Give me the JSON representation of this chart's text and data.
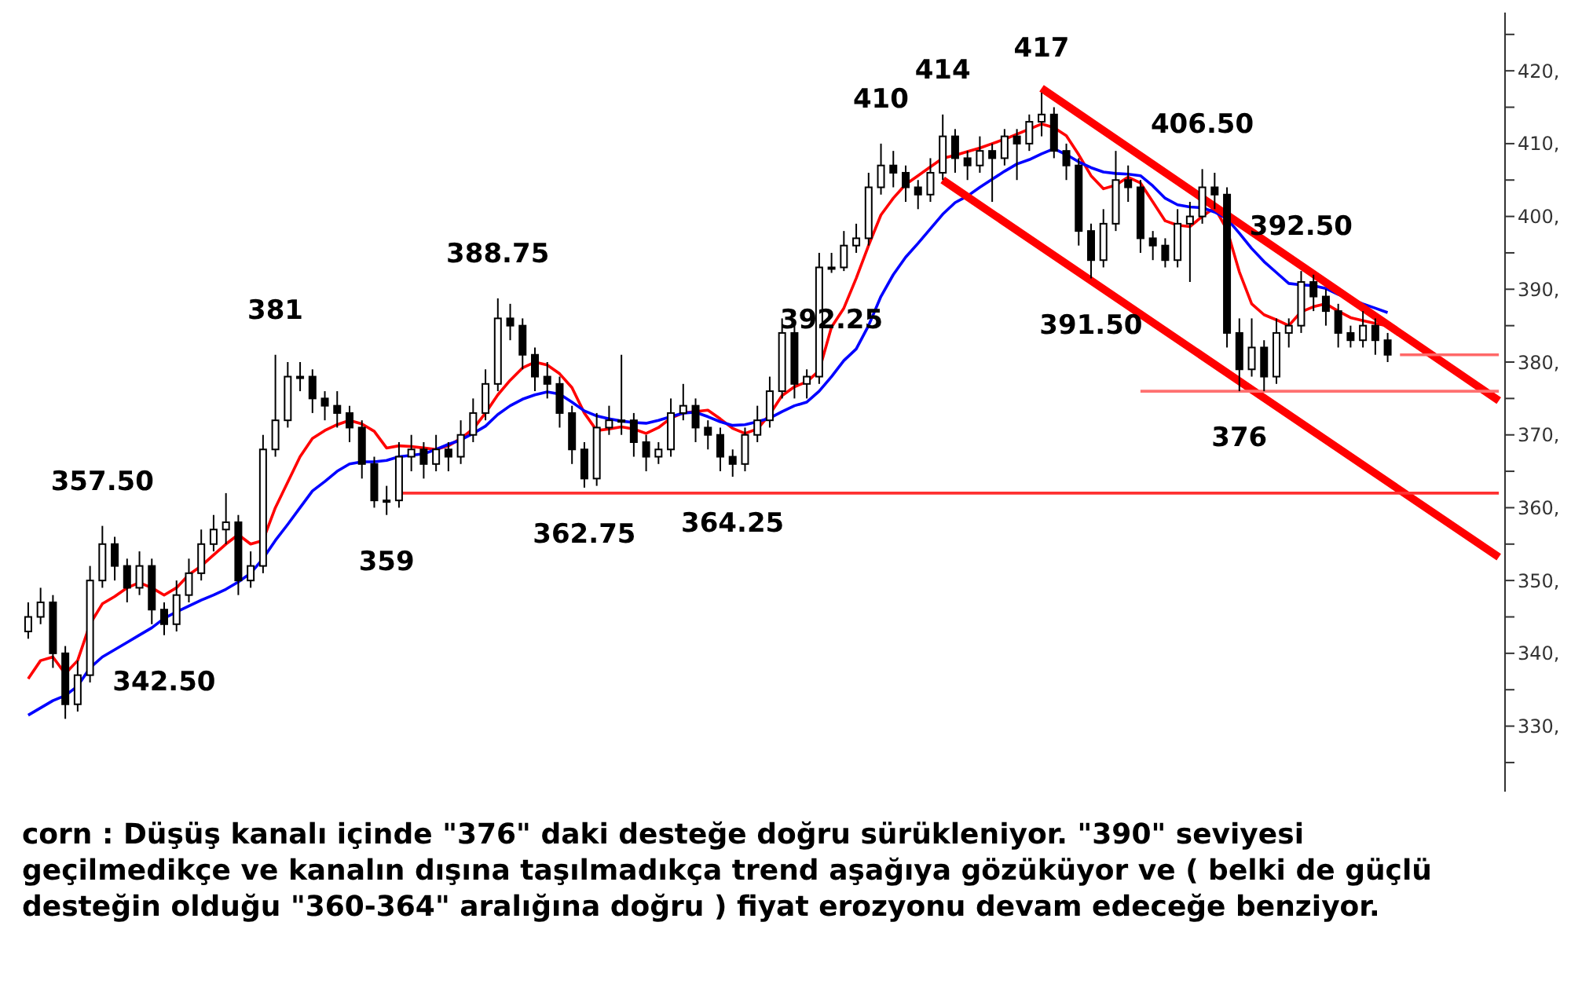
{
  "chart_data": {
    "type": "candlestick",
    "color": "#000000",
    "tick_labels": "y",
    "categories": [
      null,
      null,
      null,
      null,
      null,
      null,
      null,
      null,
      null,
      null,
      null,
      null,
      null,
      null,
      null,
      null,
      null,
      null,
      null,
      null,
      null,
      null,
      null,
      null,
      null,
      null,
      null,
      null,
      null,
      null,
      null,
      null,
      null,
      null,
      null,
      null,
      null,
      null,
      null,
      null,
      null,
      null,
      null,
      null,
      null,
      null,
      null,
      null,
      null,
      null,
      null,
      null,
      null,
      null,
      null,
      null,
      null,
      null,
      null,
      null,
      null,
      null,
      null,
      null,
      null,
      null,
      null,
      null,
      null,
      null,
      null,
      null,
      null,
      null,
      null,
      null,
      null,
      null,
      null,
      null,
      null,
      null,
      null,
      null,
      null,
      null,
      null,
      null,
      null,
      null,
      null,
      null,
      null,
      null,
      null,
      null,
      null,
      null,
      null,
      null,
      null,
      null,
      null,
      null,
      null,
      null,
      null,
      null,
      null,
      null,
      null,
      null,
      null,
      null,
      null,
      null,
      null,
      null,
      null,
      null
    ],
    "ohlc": [
      [
        343,
        347,
        342,
        345
      ],
      [
        345,
        349,
        344,
        347
      ],
      [
        347,
        348,
        338,
        340
      ],
      [
        340,
        341,
        331,
        333
      ],
      [
        333,
        339,
        332,
        337
      ],
      [
        337,
        352,
        336,
        350
      ],
      [
        350,
        357.5,
        349,
        355
      ],
      [
        355,
        356,
        350,
        352
      ],
      [
        352,
        353,
        347,
        349
      ],
      [
        349,
        354,
        348,
        352
      ],
      [
        352,
        353,
        344,
        346
      ],
      [
        346,
        347,
        342.5,
        344
      ],
      [
        344,
        350,
        343,
        348
      ],
      [
        348,
        353,
        347,
        351
      ],
      [
        351,
        357,
        350,
        355
      ],
      [
        355,
        359,
        354,
        357
      ],
      [
        357,
        362,
        355,
        358
      ],
      [
        358,
        359,
        348,
        350
      ],
      [
        350,
        354,
        349,
        352
      ],
      [
        352,
        370,
        351,
        368
      ],
      [
        368,
        381,
        367,
        372
      ],
      [
        372,
        380,
        371,
        378
      ],
      [
        378,
        380,
        376,
        378
      ],
      [
        378,
        379,
        373,
        375
      ],
      [
        375,
        376,
        372,
        374
      ],
      [
        374,
        376,
        371,
        373
      ],
      [
        373,
        374,
        369,
        371
      ],
      [
        371,
        372,
        364,
        366
      ],
      [
        366,
        367,
        360,
        361
      ],
      [
        361,
        363,
        359,
        361
      ],
      [
        361,
        369,
        360,
        367
      ],
      [
        367,
        370,
        365,
        368
      ],
      [
        368,
        369,
        364,
        366
      ],
      [
        366,
        370,
        365,
        368
      ],
      [
        368,
        369,
        365,
        367
      ],
      [
        367,
        372,
        366,
        370
      ],
      [
        370,
        375,
        369,
        373
      ],
      [
        373,
        379,
        372,
        377
      ],
      [
        377,
        388.75,
        376,
        386
      ],
      [
        386,
        388,
        383,
        385
      ],
      [
        385,
        386,
        379,
        381
      ],
      [
        381,
        382,
        376,
        378
      ],
      [
        378,
        380,
        375,
        377
      ],
      [
        377,
        378,
        371,
        373
      ],
      [
        373,
        374,
        366,
        368
      ],
      [
        368,
        369,
        362.75,
        364
      ],
      [
        364,
        373,
        363,
        371
      ],
      [
        371,
        374,
        370,
        372
      ],
      [
        372,
        381,
        370,
        372
      ],
      [
        372,
        373,
        367,
        369
      ],
      [
        369,
        370,
        365,
        367
      ],
      [
        367,
        369,
        366,
        368
      ],
      [
        368,
        375,
        367,
        373
      ],
      [
        373,
        377,
        372,
        374
      ],
      [
        374,
        375,
        369,
        371
      ],
      [
        371,
        372,
        368,
        370
      ],
      [
        370,
        371,
        365,
        367
      ],
      [
        367,
        368,
        364.25,
        366
      ],
      [
        366,
        371,
        365,
        370
      ],
      [
        370,
        374,
        369,
        372
      ],
      [
        372,
        378,
        371,
        376
      ],
      [
        376,
        386,
        375,
        384
      ],
      [
        384,
        385,
        375,
        377
      ],
      [
        377,
        379,
        375,
        378
      ],
      [
        378,
        395,
        377,
        393
      ],
      [
        393,
        395,
        392.25,
        393
      ],
      [
        393,
        398,
        392.5,
        396
      ],
      [
        396,
        399,
        395,
        397
      ],
      [
        397,
        406,
        396,
        404
      ],
      [
        404,
        410,
        403,
        407
      ],
      [
        407,
        409,
        404,
        406
      ],
      [
        406,
        407,
        402,
        404
      ],
      [
        404,
        405,
        401,
        403
      ],
      [
        403,
        408,
        402,
        406
      ],
      [
        406,
        414,
        405,
        411
      ],
      [
        411,
        412,
        406,
        408
      ],
      [
        408,
        409,
        405,
        407
      ],
      [
        407,
        411,
        406,
        409
      ],
      [
        409,
        410,
        402,
        408
      ],
      [
        408,
        412,
        407,
        411
      ],
      [
        411,
        412,
        405,
        410
      ],
      [
        410,
        414,
        409,
        413
      ],
      [
        413,
        417,
        411,
        414
      ],
      [
        414,
        415,
        408,
        409
      ],
      [
        409,
        410,
        405,
        407
      ],
      [
        407,
        408,
        396,
        398
      ],
      [
        398,
        399,
        391.5,
        394
      ],
      [
        394,
        401,
        393,
        399
      ],
      [
        399,
        409,
        398,
        405
      ],
      [
        405,
        407,
        402,
        404
      ],
      [
        404,
        405,
        395,
        397
      ],
      [
        397,
        398,
        394,
        396
      ],
      [
        396,
        397,
        393,
        394
      ],
      [
        394,
        401,
        393,
        399
      ],
      [
        399,
        402,
        391,
        400
      ],
      [
        400,
        406.5,
        399,
        404
      ],
      [
        404,
        406,
        401,
        403
      ],
      [
        403,
        404,
        382,
        384
      ],
      [
        384,
        386,
        376,
        379
      ],
      [
        379,
        386,
        378,
        382
      ],
      [
        382,
        383,
        376,
        378
      ],
      [
        378,
        386,
        377,
        384
      ],
      [
        384,
        386,
        382,
        385
      ],
      [
        385,
        392.5,
        384,
        391
      ],
      [
        391,
        392,
        387,
        389
      ],
      [
        389,
        390,
        385,
        387
      ],
      [
        387,
        388,
        382,
        384
      ],
      [
        384,
        385,
        382,
        383
      ],
      [
        383,
        387,
        382,
        385
      ],
      [
        385,
        386,
        381,
        383
      ],
      [
        383,
        384,
        380,
        381
      ],
      null,
      null,
      null,
      null,
      null,
      null,
      null,
      null,
      null
    ],
    "series": [
      {
        "type": "line",
        "color": "#ff0000",
        "values": [
          336.5,
          339,
          339.5,
          337.2,
          339,
          344,
          346.8,
          347.8,
          349,
          349.7,
          349,
          348,
          349,
          350.8,
          352,
          353.5,
          355,
          356.3,
          355,
          355.5,
          360,
          363.5,
          367,
          369.5,
          370.6,
          371.4,
          372,
          371.5,
          370.5,
          368.2,
          368.5,
          368.4,
          368.2,
          368,
          368.5,
          369.5,
          370.8,
          373,
          375.5,
          377.5,
          379.2,
          380,
          379.6,
          378.4,
          376.5,
          373,
          370.6,
          370.8,
          371.1,
          370.8,
          370.2,
          371,
          372.3,
          373,
          373.2,
          373.4,
          372.2,
          370.9,
          370.2,
          370.8,
          372.8,
          375.4,
          376.6,
          377.3,
          378.8,
          384.8,
          387.4,
          391.5,
          396,
          400.2,
          402.5,
          404.4,
          405.6,
          406.8,
          408,
          408.4,
          408.9,
          409.4,
          410,
          410.6,
          411.3,
          412,
          412.7,
          412.2,
          411.1,
          408.5,
          405.6,
          403.8,
          404.3,
          405.4,
          404.6,
          402,
          399.4,
          398.8,
          398.6,
          400,
          401.2,
          398.2,
          392.4,
          388,
          386.5,
          385.8,
          385,
          386.9,
          387.6,
          388,
          387,
          386.1,
          385.7,
          385.3,
          385,
          null,
          null,
          null,
          null,
          null,
          null,
          null,
          null,
          null
        ]
      },
      {
        "type": "line",
        "color": "#0000ff",
        "values": [
          331.5,
          332.5,
          333.5,
          334.2,
          335.5,
          338,
          339.5,
          340.5,
          341.5,
          342.5,
          343.5,
          344.8,
          345.7,
          346.5,
          347.3,
          348,
          348.8,
          349.8,
          351,
          353,
          355.5,
          357.7,
          360,
          362.3,
          363.6,
          365,
          366,
          366.3,
          366.3,
          366.5,
          367,
          367.2,
          367.4,
          368,
          368.7,
          369.3,
          370.2,
          371.2,
          372.8,
          374,
          374.9,
          375.5,
          375.9,
          375.6,
          374.5,
          373.3,
          372.6,
          372.2,
          371.9,
          371.7,
          371.6,
          372,
          372.5,
          373,
          373.1,
          372.5,
          371.8,
          371.3,
          371.4,
          371.8,
          372.3,
          373.2,
          374,
          374.5,
          376,
          378,
          380.2,
          381.8,
          385,
          389,
          392,
          394.4,
          396.3,
          398.3,
          400.3,
          401.9,
          402.8,
          404,
          405.1,
          406.2,
          407.2,
          407.8,
          408.6,
          409.3,
          408.5,
          407.5,
          406.7,
          406.1,
          405.9,
          405.8,
          405.6,
          404.2,
          402.5,
          401.6,
          401.3,
          401.2,
          400.6,
          399.7,
          397.7,
          395.6,
          393.8,
          392.3,
          390.8,
          390.6,
          390.5,
          390.1,
          389.3,
          null,
          388,
          387.4,
          386.8,
          null,
          null,
          null,
          null,
          null,
          null,
          null,
          null,
          null
        ]
      },
      {
        "type": "line",
        "color": "#ff0000",
        "values": [
          null,
          null,
          null,
          null,
          null,
          null,
          null,
          null,
          null,
          null,
          null,
          null,
          null,
          null,
          null,
          null,
          null,
          null,
          null,
          null,
          null,
          null,
          null,
          null,
          null,
          null,
          null,
          null,
          null,
          null,
          null,
          null,
          null,
          null,
          null,
          null,
          null,
          null,
          null,
          null,
          null,
          null,
          null,
          null,
          null,
          null,
          null,
          null,
          null,
          null,
          null,
          null,
          null,
          null,
          null,
          null,
          null,
          null,
          null,
          null,
          null,
          null,
          null,
          null,
          null,
          null,
          null,
          null,
          null,
          null,
          null,
          null,
          null,
          null,
          null,
          null,
          null,
          null,
          null,
          null,
          null,
          null,
          417.6,
          null,
          null,
          null,
          null,
          null,
          null,
          null,
          null,
          null,
          null,
          null,
          null,
          null,
          null,
          null,
          null,
          null,
          null,
          null,
          null,
          null,
          null,
          null,
          null,
          null,
          null,
          null,
          null,
          null,
          null,
          null,
          null,
          null,
          null,
          null,
          null,
          374.7
        ]
      },
      {
        "type": "line",
        "color": "#ff0000",
        "values": [
          null,
          null,
          null,
          null,
          null,
          null,
          null,
          null,
          null,
          null,
          null,
          null,
          null,
          null,
          null,
          null,
          null,
          null,
          null,
          null,
          null,
          null,
          null,
          null,
          null,
          null,
          null,
          null,
          null,
          null,
          null,
          null,
          null,
          null,
          null,
          null,
          null,
          null,
          null,
          null,
          null,
          null,
          null,
          null,
          null,
          null,
          null,
          null,
          null,
          null,
          null,
          null,
          null,
          null,
          null,
          null,
          null,
          null,
          null,
          null,
          null,
          null,
          null,
          null,
          null,
          null,
          null,
          null,
          null,
          null,
          null,
          null,
          null,
          null,
          405,
          null,
          null,
          null,
          null,
          null,
          null,
          null,
          null,
          null,
          null,
          null,
          null,
          null,
          null,
          null,
          null,
          null,
          null,
          null,
          null,
          null,
          null,
          null,
          null,
          null,
          null,
          null,
          null,
          null,
          null,
          null,
          null,
          null,
          null,
          null,
          null,
          null,
          null,
          null,
          null,
          null,
          null,
          null,
          null,
          353.2
        ]
      },
      {
        "type": "line",
        "color": "#ff3030",
        "values": [
          null,
          null,
          null,
          null,
          null,
          null,
          null,
          null,
          null,
          null,
          null,
          null,
          null,
          null,
          null,
          null,
          null,
          null,
          null,
          null,
          null,
          null,
          null,
          null,
          null,
          null,
          null,
          null,
          null,
          null,
          362,
          null,
          null,
          null,
          null,
          null,
          null,
          null,
          null,
          null,
          null,
          null,
          null,
          null,
          null,
          null,
          null,
          null,
          null,
          null,
          null,
          null,
          null,
          null,
          null,
          null,
          null,
          null,
          null,
          null,
          null,
          null,
          null,
          null,
          null,
          null,
          null,
          null,
          null,
          null,
          null,
          null,
          null,
          null,
          null,
          null,
          null,
          null,
          null,
          null,
          null,
          null,
          null,
          null,
          null,
          null,
          null,
          null,
          null,
          null,
          null,
          null,
          null,
          null,
          null,
          null,
          null,
          null,
          null,
          null,
          null,
          null,
          null,
          null,
          null,
          null,
          null,
          null,
          null,
          null,
          null,
          null,
          null,
          null,
          null,
          null,
          null,
          null,
          null,
          362
        ]
      },
      {
        "type": "line",
        "color": "#ff7070",
        "values": [
          null,
          null,
          null,
          null,
          null,
          null,
          null,
          null,
          null,
          null,
          null,
          null,
          null,
          null,
          null,
          null,
          null,
          null,
          null,
          null,
          null,
          null,
          null,
          null,
          null,
          null,
          null,
          null,
          null,
          null,
          null,
          null,
          null,
          null,
          null,
          null,
          null,
          null,
          null,
          null,
          null,
          null,
          null,
          null,
          null,
          null,
          null,
          null,
          null,
          null,
          null,
          null,
          null,
          null,
          null,
          null,
          null,
          null,
          null,
          null,
          null,
          null,
          null,
          null,
          null,
          null,
          null,
          null,
          null,
          null,
          null,
          null,
          null,
          null,
          null,
          null,
          null,
          null,
          null,
          null,
          null,
          null,
          null,
          null,
          null,
          null,
          null,
          null,
          null,
          null,
          376,
          null,
          null,
          null,
          null,
          null,
          null,
          null,
          null,
          null,
          null,
          null,
          null,
          null,
          null,
          null,
          null,
          null,
          null,
          null,
          null,
          null,
          null,
          null,
          null,
          null,
          null,
          null,
          null,
          376
        ]
      },
      {
        "type": "line",
        "color": "#ff6868",
        "values": [
          null,
          null,
          null,
          null,
          null,
          null,
          null,
          null,
          null,
          null,
          null,
          null,
          null,
          null,
          null,
          null,
          null,
          null,
          null,
          null,
          null,
          null,
          null,
          null,
          null,
          null,
          null,
          null,
          null,
          null,
          null,
          null,
          null,
          null,
          null,
          null,
          null,
          null,
          null,
          null,
          null,
          null,
          null,
          null,
          null,
          null,
          null,
          null,
          null,
          null,
          null,
          null,
          null,
          null,
          null,
          null,
          null,
          null,
          null,
          null,
          null,
          null,
          null,
          null,
          null,
          null,
          null,
          null,
          null,
          null,
          null,
          null,
          null,
          null,
          null,
          null,
          null,
          null,
          null,
          null,
          null,
          null,
          null,
          null,
          null,
          null,
          null,
          null,
          null,
          null,
          null,
          null,
          null,
          null,
          null,
          null,
          null,
          null,
          null,
          null,
          null,
          null,
          null,
          null,
          null,
          null,
          null,
          null,
          null,
          null,
          null,
          381,
          null,
          null,
          null,
          null,
          null,
          null,
          null,
          381
        ]
      }
    ],
    "ylim": [
      321,
      428
    ],
    "yticks": [
      {
        "value": 325,
        "label": null
      },
      {
        "value": 330,
        "label": "330,"
      },
      {
        "value": 335,
        "label": null
      },
      {
        "value": 340,
        "label": "340,"
      },
      {
        "value": 345,
        "label": null
      },
      {
        "value": 350,
        "label": "350,"
      },
      {
        "value": 355,
        "label": null
      },
      {
        "value": 360,
        "label": "360,"
      },
      {
        "value": 365,
        "label": null
      },
      {
        "value": 370,
        "label": "370,"
      },
      {
        "value": 375,
        "label": null
      },
      {
        "value": 380,
        "label": "380,"
      },
      {
        "value": 385,
        "label": null
      },
      {
        "value": 390,
        "label": "390,"
      },
      {
        "value": 395,
        "label": null
      },
      {
        "value": 400,
        "label": "400,"
      },
      {
        "value": 405,
        "label": null
      },
      {
        "value": 410,
        "label": "410,"
      },
      {
        "value": 415,
        "label": null
      },
      {
        "value": 420,
        "label": "420,"
      },
      {
        "value": 425,
        "label": null
      }
    ],
    "annotations": [
      {
        "text": "357.50",
        "y": 357.5
      },
      {
        "text": "342.50",
        "y": 342.5
      },
      {
        "text": "381",
        "y": 381
      },
      {
        "text": "359",
        "y": 359
      },
      {
        "text": "388.75",
        "y": 388.75
      },
      {
        "text": "362.75",
        "y": 362.75
      },
      {
        "text": "364.25",
        "y": 364.25
      },
      {
        "text": "392.25",
        "y": 392.25
      },
      {
        "text": "410",
        "y": 410
      },
      {
        "text": "414",
        "y": 414
      },
      {
        "text": "417",
        "y": 417
      },
      {
        "text": "391.50",
        "y": 391.5
      },
      {
        "text": "406.50",
        "y": 406.5
      },
      {
        "text": "376",
        "y": 376
      },
      {
        "text": "392.50",
        "y": 392.5
      },
      "corn : Düşüş kanalı içinde \"376\" daki desteğe doğru sürükleniyor. \"390\" seviyesi geçilmedikçe ve kanalın dışına taşılmadıkça trend aşağıya gözüküyor ve ( belki de güçlü desteğin olduğu \"360-364\" aralığına doğru ) fiyat erozyonu devam edeceğe benziyor."
    ]
  }
}
